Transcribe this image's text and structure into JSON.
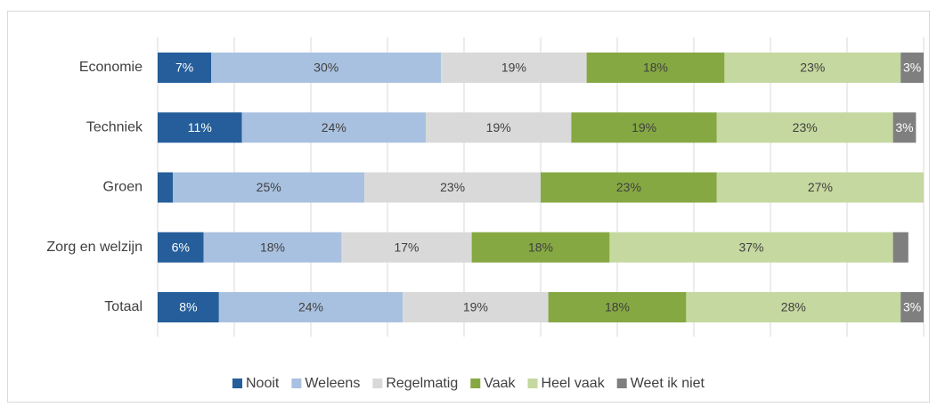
{
  "chart_data": {
    "type": "stacked-barh",
    "categories": [
      "Economie",
      "Techniek",
      "Groen",
      "Zorg en welzijn",
      "Totaal"
    ],
    "xlim": [
      0,
      100
    ],
    "xticks": [
      0,
      10,
      20,
      30,
      40,
      50,
      60,
      70,
      80,
      90,
      100
    ],
    "grid": true,
    "legend": "bottom",
    "series": [
      {
        "name": "Nooit",
        "color": "#255e9a",
        "values": [
          7,
          11,
          2,
          6,
          8
        ],
        "value_labels": [
          "7%",
          "11%",
          null,
          "6%",
          "8%"
        ]
      },
      {
        "name": "Weleens",
        "color": "#a9c1e0",
        "values": [
          30,
          24,
          25,
          18,
          24
        ],
        "value_labels": [
          "30%",
          "24%",
          "25%",
          "18%",
          "24%"
        ]
      },
      {
        "name": "Regelmatig",
        "color": "#d9d9d9",
        "values": [
          19,
          19,
          23,
          17,
          19
        ],
        "value_labels": [
          "19%",
          "19%",
          "23%",
          "17%",
          "19%"
        ]
      },
      {
        "name": "Vaak",
        "color": "#86a843",
        "values": [
          18,
          19,
          23,
          18,
          18
        ],
        "value_labels": [
          "18%",
          "19%",
          "23%",
          "18%",
          "18%"
        ]
      },
      {
        "name": "Heel vaak",
        "color": "#c5d89f",
        "values": [
          23,
          23,
          27,
          37,
          28
        ],
        "value_labels": [
          "23%",
          "23%",
          "27%",
          "37%",
          "28%"
        ]
      },
      {
        "name": "Weet ik niet",
        "color": "#7f7f7f",
        "values": [
          3,
          3,
          null,
          2,
          3
        ],
        "value_labels": [
          "3%",
          "3%",
          null,
          null,
          "3%"
        ]
      }
    ]
  }
}
